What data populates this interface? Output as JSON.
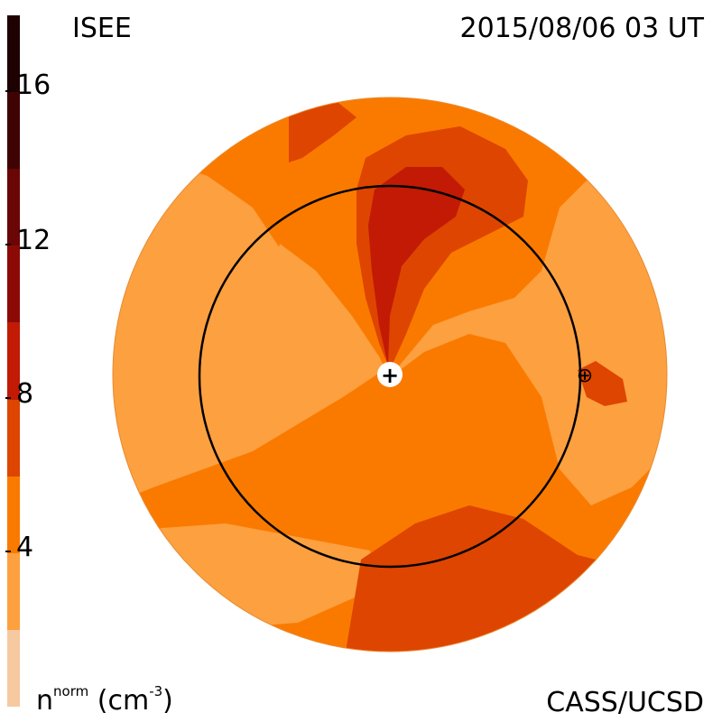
{
  "header": {
    "instrument": "ISEE",
    "timestamp": "2015/08/06 03 UT"
  },
  "footer": {
    "credit": "CASS/UCSD"
  },
  "colorbar": {
    "unit_base": "n",
    "unit_sup": "norm",
    "unit_paren": "(cm",
    "unit_exp": "-3",
    "unit_close": ")",
    "ticks": [
      "4",
      "8",
      "12",
      "16"
    ],
    "range": [
      0,
      18
    ],
    "levels": [
      {
        "from": 0,
        "to": 2,
        "color": "#f7c9a0"
      },
      {
        "from": 2,
        "to": 4,
        "color": "#fca040"
      },
      {
        "from": 4,
        "to": 6,
        "color": "#fa7a00"
      },
      {
        "from": 6,
        "to": 8,
        "color": "#de4500"
      },
      {
        "from": 8,
        "to": 10,
        "color": "#c21a05"
      },
      {
        "from": 10,
        "to": 12,
        "color": "#8c0a05"
      },
      {
        "from": 12,
        "to": 14,
        "color": "#6a0605"
      },
      {
        "from": 14,
        "to": 16,
        "color": "#400303"
      },
      {
        "from": 16,
        "to": 18,
        "color": "#1e0202"
      }
    ]
  },
  "map": {
    "sun_marker": "+",
    "earth_marker": "⊕",
    "earth_orbit": "1 AU circle"
  }
}
